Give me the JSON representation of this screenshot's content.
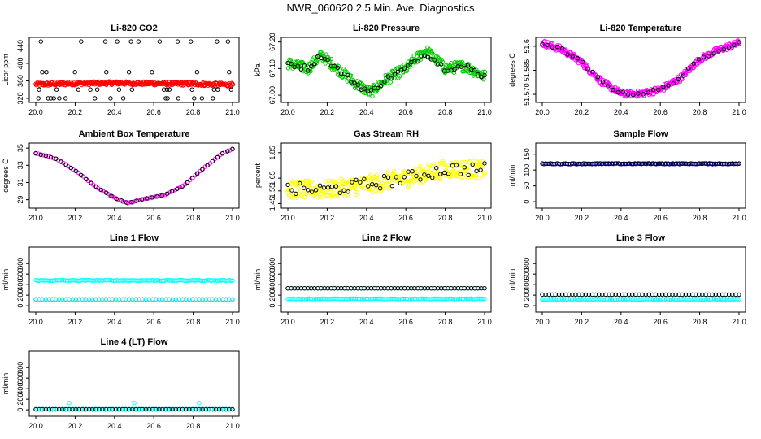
{
  "page": {
    "title": "NWR_060620  2.5 Min. Ave. Diagnostics"
  },
  "colors": {
    "black": "#000000",
    "red": "#ff0000",
    "green": "#00cc00",
    "magenta": "#ff00ff",
    "yellow": "#ffff00",
    "cyan": "#00ffff",
    "blue": "#0000cc"
  },
  "chart_data": [
    {
      "id": "co2",
      "type": "scatter",
      "title": "Li-820 CO2",
      "ylabel": "Licor ppm",
      "xlim": [
        20.0,
        21.0
      ],
      "ylim": [
        318,
        452
      ],
      "x_ticks": [
        "20.0",
        "20.2",
        "20.4",
        "20.6",
        "20.8",
        "21.0"
      ],
      "y_ticks": [
        "320",
        "360",
        "400",
        "440"
      ],
      "series": [
        {
          "color": "red",
          "pattern": "band",
          "points": [
            [
              20.0,
              352
            ],
            [
              20.2,
              354
            ],
            [
              20.4,
              355
            ],
            [
              20.6,
              354
            ],
            [
              20.8,
              353
            ],
            [
              21.0,
              351
            ]
          ],
          "spread": 4
        },
        {
          "color": "black",
          "pattern": "levels",
          "levels": [
            320,
            340,
            380,
            450
          ],
          "count": 48
        }
      ]
    },
    {
      "id": "pressure",
      "type": "scatter",
      "title": "Li-820 Pressure",
      "ylabel": "kPa",
      "xlim": [
        20.0,
        21.0
      ],
      "ylim": [
        66.985,
        67.205
      ],
      "x_ticks": [
        "20.0",
        "20.2",
        "20.4",
        "20.6",
        "20.8",
        "21.0"
      ],
      "y_ticks": [
        "67.00",
        "67.10",
        "67.20"
      ],
      "series": [
        {
          "color": "green",
          "pattern": "band",
          "points": [
            [
              20.0,
              67.12
            ],
            [
              20.1,
              67.1
            ],
            [
              20.17,
              67.15
            ],
            [
              20.25,
              67.1
            ],
            [
              20.35,
              67.04
            ],
            [
              20.42,
              67.01
            ],
            [
              20.5,
              67.06
            ],
            [
              20.6,
              67.1
            ],
            [
              20.7,
              67.17
            ],
            [
              20.8,
              67.1
            ],
            [
              20.9,
              67.11
            ],
            [
              21.0,
              67.07
            ]
          ],
          "spread": 0.02
        },
        {
          "color": "black",
          "pattern": "curve",
          "points": [
            [
              20.0,
              67.12
            ],
            [
              20.1,
              67.1
            ],
            [
              20.17,
              67.15
            ],
            [
              20.25,
              67.1
            ],
            [
              20.35,
              67.04
            ],
            [
              20.42,
              67.01
            ],
            [
              20.5,
              67.06
            ],
            [
              20.6,
              67.1
            ],
            [
              20.7,
              67.16
            ],
            [
              20.8,
              67.1
            ],
            [
              20.9,
              67.11
            ],
            [
              21.0,
              67.07
            ]
          ],
          "count": 60,
          "spread": 0.01
        }
      ]
    },
    {
      "id": "temperature",
      "type": "scatter",
      "title": "Li-820 Temperature",
      "ylabel": "degrees C",
      "xlim": [
        20.0,
        21.0
      ],
      "ylim": [
        51.567,
        51.6035
      ],
      "x_ticks": [
        "20.0",
        "20.2",
        "20.4",
        "20.6",
        "20.8",
        "21.0"
      ],
      "y_ticks": [
        "51.570",
        "51.585",
        "51.6"
      ],
      "series": [
        {
          "color": "magenta",
          "pattern": "band",
          "points": [
            [
              20.0,
              51.602
            ],
            [
              20.1,
              51.598
            ],
            [
              20.2,
              51.59
            ],
            [
              20.3,
              51.578
            ],
            [
              20.4,
              51.5705
            ],
            [
              20.5,
              51.5705
            ],
            [
              20.6,
              51.573
            ],
            [
              20.7,
              51.58
            ],
            [
              20.8,
              51.592
            ],
            [
              20.9,
              51.598
            ],
            [
              21.0,
              51.602
            ]
          ],
          "spread": 0.002
        },
        {
          "color": "black",
          "pattern": "curve",
          "points": [
            [
              20.0,
              51.602
            ],
            [
              20.1,
              51.598
            ],
            [
              20.2,
              51.59
            ],
            [
              20.3,
              51.578
            ],
            [
              20.4,
              51.5705
            ],
            [
              20.5,
              51.5705
            ],
            [
              20.6,
              51.573
            ],
            [
              20.7,
              51.58
            ],
            [
              20.8,
              51.592
            ],
            [
              20.9,
              51.598
            ],
            [
              21.0,
              51.602
            ]
          ],
          "count": 40,
          "spread": 0.001
        }
      ]
    },
    {
      "id": "ambient",
      "type": "scatter",
      "title": "Ambient Box Temperature",
      "ylabel": "degrees C",
      "xlim": [
        20.0,
        21.0
      ],
      "ylim": [
        28.4,
        35.2
      ],
      "x_ticks": [
        "20.0",
        "20.2",
        "20.4",
        "20.6",
        "20.8",
        "21.0"
      ],
      "y_ticks": [
        "29",
        "31",
        "33",
        "35"
      ],
      "series": [
        {
          "color": "magenta",
          "pattern": "curve",
          "points": [
            [
              20.0,
              34.4
            ],
            [
              20.1,
              33.8
            ],
            [
              20.2,
              32.4
            ],
            [
              20.3,
              30.6
            ],
            [
              20.4,
              29.2
            ],
            [
              20.47,
              28.6
            ],
            [
              20.55,
              29.1
            ],
            [
              20.65,
              29.5
            ],
            [
              20.75,
              30.6
            ],
            [
              20.85,
              32.6
            ],
            [
              20.95,
              34.4
            ],
            [
              21.0,
              34.9
            ]
          ],
          "count": 80,
          "spread": 0.05
        },
        {
          "color": "black",
          "pattern": "curve",
          "points": [
            [
              20.0,
              34.4
            ],
            [
              20.1,
              33.8
            ],
            [
              20.2,
              32.4
            ],
            [
              20.3,
              30.6
            ],
            [
              20.4,
              29.2
            ],
            [
              20.47,
              28.6
            ],
            [
              20.55,
              29.1
            ],
            [
              20.65,
              29.5
            ],
            [
              20.75,
              30.6
            ],
            [
              20.85,
              32.6
            ],
            [
              20.95,
              34.4
            ],
            [
              21.0,
              34.9
            ]
          ],
          "count": 40,
          "spread": 0.0
        }
      ]
    },
    {
      "id": "rh",
      "type": "scatter",
      "title": "Gas Stream RH",
      "ylabel": "percent",
      "xlim": [
        20.0,
        21.0
      ],
      "ylim": [
        1.44,
        1.9
      ],
      "x_ticks": [
        "20.0",
        "20.2",
        "20.4",
        "20.6",
        "20.8",
        "21.0"
      ],
      "y_ticks": [
        "1.45",
        "1.55",
        "1.65",
        "1.85"
      ],
      "series": [
        {
          "color": "yellow",
          "pattern": "band",
          "points": [
            [
              20.0,
              1.56
            ],
            [
              20.2,
              1.56
            ],
            [
              20.4,
              1.6
            ],
            [
              20.6,
              1.65
            ],
            [
              20.8,
              1.72
            ],
            [
              21.0,
              1.72
            ]
          ],
          "spread": 0.07
        },
        {
          "color": "black",
          "pattern": "curve",
          "points": [
            [
              20.0,
              1.56
            ],
            [
              20.2,
              1.56
            ],
            [
              20.4,
              1.6
            ],
            [
              20.6,
              1.65
            ],
            [
              20.8,
              1.72
            ],
            [
              21.0,
              1.72
            ]
          ],
          "count": 50,
          "spread": 0.05
        }
      ]
    },
    {
      "id": "sample-flow",
      "type": "scatter",
      "title": "Sample Flow",
      "ylabel": "ml/min",
      "xlim": [
        20.0,
        21.0
      ],
      "ylim": [
        -10,
        175
      ],
      "x_ticks": [
        "20.0",
        "20.2",
        "20.4",
        "20.6",
        "20.8",
        "21.0"
      ],
      "y_ticks": [
        "0",
        "50",
        "100",
        "150"
      ],
      "series": [
        {
          "color": "blue",
          "pattern": "curve",
          "points": [
            [
              20.0,
              120
            ],
            [
              21.0,
              120
            ]
          ],
          "count": 120,
          "spread": 1.5
        },
        {
          "color": "black",
          "pattern": "curve",
          "points": [
            [
              20.0,
              120
            ],
            [
              21.0,
              120
            ]
          ],
          "count": 60,
          "spread": 1.0
        }
      ]
    },
    {
      "id": "line1",
      "type": "scatter",
      "title": "Line 1 Flow",
      "ylabel": "ml/min",
      "xlim": [
        20.0,
        21.0
      ],
      "ylim": [
        -60,
        1050
      ],
      "x_ticks": [
        "20.0",
        "20.2",
        "20.4",
        "20.6",
        "20.8",
        "21.0"
      ],
      "y_ticks": [
        "0",
        "200",
        "400",
        "600",
        "800"
      ],
      "series": [
        {
          "color": "cyan",
          "pattern": "curve",
          "points": [
            [
              20.0,
              480
            ],
            [
              21.0,
              480
            ]
          ],
          "count": 120,
          "spread": 8
        },
        {
          "color": "black",
          "pattern": "curve",
          "points": [
            [
              20.0,
              120
            ],
            [
              21.0,
              120
            ]
          ],
          "count": 60,
          "spread": 0
        },
        {
          "color": "cyan",
          "pattern": "curve",
          "points": [
            [
              20.0,
              120
            ],
            [
              21.0,
              120
            ]
          ],
          "count": 60,
          "spread": 0
        }
      ]
    },
    {
      "id": "line2",
      "type": "scatter",
      "title": "Line 2 Flow",
      "ylabel": "ml/min",
      "xlim": [
        20.0,
        21.0
      ],
      "ylim": [
        -60,
        1050
      ],
      "x_ticks": [
        "20.0",
        "20.2",
        "20.4",
        "20.6",
        "20.8",
        "21.0"
      ],
      "y_ticks": [
        "0",
        "200",
        "400",
        "600",
        "800"
      ],
      "series": [
        {
          "color": "cyan",
          "pattern": "curve",
          "points": [
            [
              20.0,
              130
            ],
            [
              21.0,
              130
            ]
          ],
          "count": 120,
          "spread": 6
        },
        {
          "color": "cyan",
          "pattern": "curve",
          "points": [
            [
              20.0,
              330
            ],
            [
              21.0,
              330
            ]
          ],
          "count": 60,
          "spread": 0
        },
        {
          "color": "black",
          "pattern": "curve",
          "points": [
            [
              20.0,
              330
            ],
            [
              21.0,
              330
            ]
          ],
          "count": 60,
          "spread": 0
        }
      ]
    },
    {
      "id": "line3",
      "type": "scatter",
      "title": "Line 3 Flow",
      "ylabel": "ml/min",
      "xlim": [
        20.0,
        21.0
      ],
      "ylim": [
        -60,
        1050
      ],
      "x_ticks": [
        "20.0",
        "20.2",
        "20.4",
        "20.6",
        "20.8",
        "21.0"
      ],
      "y_ticks": [
        "0",
        "200",
        "400",
        "600",
        "800"
      ],
      "series": [
        {
          "color": "cyan",
          "pattern": "curve",
          "points": [
            [
              20.0,
              120
            ],
            [
              21.0,
              120
            ]
          ],
          "count": 120,
          "spread": 6
        },
        {
          "color": "cyan",
          "pattern": "curve",
          "points": [
            [
              20.0,
              210
            ],
            [
              21.0,
              210
            ]
          ],
          "count": 60,
          "spread": 0
        },
        {
          "color": "black",
          "pattern": "curve",
          "points": [
            [
              20.0,
              210
            ],
            [
              21.0,
              210
            ]
          ],
          "count": 60,
          "spread": 0
        }
      ]
    },
    {
      "id": "line4",
      "type": "scatter",
      "title": "Line 4 (LT) Flow",
      "ylabel": "ml/min",
      "xlim": [
        20.0,
        21.0
      ],
      "ylim": [
        -60,
        1050
      ],
      "x_ticks": [
        "20.0",
        "20.2",
        "20.4",
        "20.6",
        "20.8",
        "21.0"
      ],
      "y_ticks": [
        "0",
        "200",
        "400",
        "600",
        "800"
      ],
      "series": [
        {
          "color": "cyan",
          "pattern": "curve",
          "points": [
            [
              20.0,
              10
            ],
            [
              21.0,
              10
            ]
          ],
          "count": 120,
          "spread": 0
        },
        {
          "color": "black",
          "pattern": "curve",
          "points": [
            [
              20.0,
              10
            ],
            [
              21.0,
              10
            ]
          ],
          "count": 60,
          "spread": 0
        },
        {
          "color": "cyan",
          "pattern": "points",
          "points": [
            [
              20.17,
              130
            ],
            [
              20.5,
              130
            ],
            [
              20.83,
              130
            ]
          ]
        }
      ]
    }
  ]
}
